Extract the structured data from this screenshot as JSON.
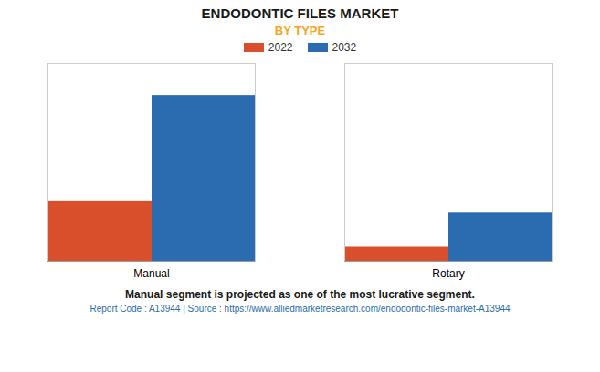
{
  "chart_data": {
    "type": "bar",
    "title": "ENDODONTIC FILES MARKET",
    "subtitle": "BY TYPE",
    "categories": [
      "Manual",
      "Rotary"
    ],
    "series": [
      {
        "name": "2022",
        "color": "#D94F2B",
        "values": [
          3.2,
          0.75
        ]
      },
      {
        "name": "2032",
        "color": "#2B6CB0",
        "values": [
          8.8,
          2.55
        ]
      }
    ],
    "ylim": [
      0,
      10.5
    ],
    "yticks": [],
    "grid": false,
    "legend": "top",
    "tick_labels": "x",
    "annotations": [
      "Manual segment is projected as one of the most lucrative segment.",
      "Report Code : A13944  |  Source : https://www.alliedmarketresearch.com/endodontic-files-market-A13944"
    ]
  }
}
